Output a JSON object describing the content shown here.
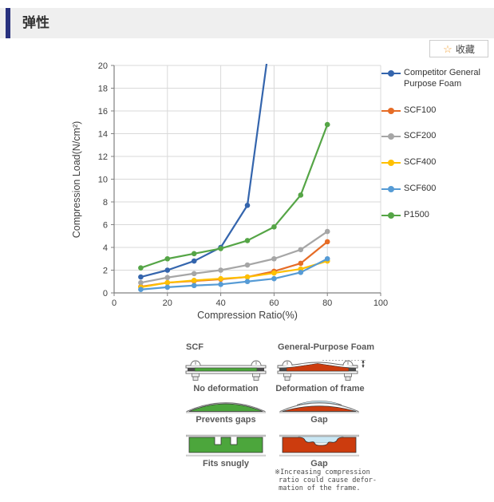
{
  "page": {
    "title": "弹性",
    "favorite_label": "收藏"
  },
  "colors": {
    "header_bar": "#28317e",
    "header_bg": "#efefef",
    "star": "#f2a33c",
    "foam_green": "#4ca63c",
    "foam_red": "#cc3c0e",
    "gap_blue": "#c9e7f4"
  },
  "chart_data": {
    "type": "line",
    "x": [
      10,
      20,
      30,
      40,
      50,
      60,
      70,
      80
    ],
    "series": [
      {
        "name": "Competitor General Purpose Foam",
        "color": "#3465ad",
        "values": [
          1.4,
          2.0,
          2.8,
          4.0,
          7.7,
          25
        ]
      },
      {
        "name": "SCF100",
        "color": "#e66c26",
        "values": [
          0.55,
          0.9,
          1.05,
          1.2,
          1.4,
          1.9,
          2.6,
          4.5
        ]
      },
      {
        "name": "SCF200",
        "color": "#a6a6a6",
        "values": [
          0.9,
          1.35,
          1.7,
          2.0,
          2.45,
          3.0,
          3.8,
          5.4
        ]
      },
      {
        "name": "SCF400",
        "color": "#ffc000",
        "values": [
          0.5,
          0.9,
          1.1,
          1.25,
          1.4,
          1.75,
          2.1,
          2.8
        ]
      },
      {
        "name": "SCF600",
        "color": "#569bd5",
        "values": [
          0.3,
          0.5,
          0.65,
          0.75,
          1.0,
          1.25,
          1.8,
          3.0
        ]
      },
      {
        "name": "P1500",
        "color": "#55a546",
        "values": [
          2.2,
          3.0,
          3.45,
          3.9,
          4.6,
          5.8,
          8.6,
          14.8
        ]
      }
    ],
    "xlabel": "Compression Ratio(%)",
    "ylabel": "Compression Load(N/cm²)",
    "xlim": [
      0,
      100
    ],
    "ylim": [
      0,
      20
    ],
    "xticks": [
      0,
      20,
      40,
      60,
      80,
      100
    ],
    "yticks": [
      0,
      2,
      4,
      6,
      8,
      10,
      12,
      14,
      16,
      18,
      20
    ],
    "grid": true,
    "legend_position": "right"
  },
  "diagrams": {
    "left_header": "SCF",
    "right_header": "General-Purpose Foam",
    "rows": [
      {
        "left_caption": "No deformation",
        "right_caption": "Deformation of frame"
      },
      {
        "left_caption": "Prevents gaps",
        "right_caption": "Gap"
      },
      {
        "left_caption": "Fits snugly",
        "right_caption": "Gap"
      }
    ],
    "footnote": "※Increasing compression\n ratio could cause defor-\n mation of the frame."
  }
}
